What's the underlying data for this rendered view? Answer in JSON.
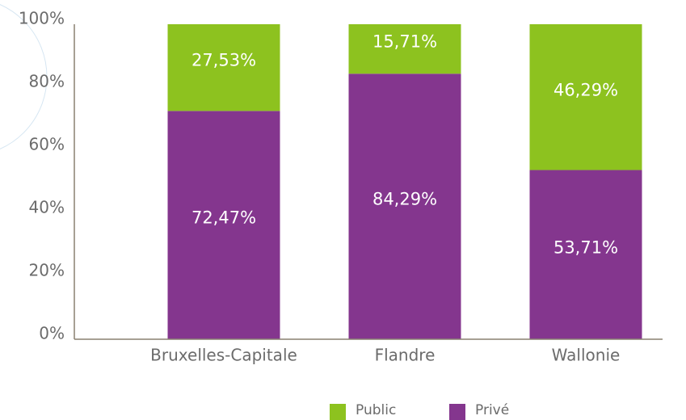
{
  "chart_data": {
    "type": "stacked_bar",
    "categories": [
      "Bruxelles-Capitale",
      "Flandre",
      "Wallonie"
    ],
    "series": [
      {
        "name": "Public",
        "color": "#8dc21f",
        "values": [
          27.53,
          15.71,
          46.29
        ],
        "value_labels": [
          "27,53%",
          "15,71%",
          "46,29%"
        ]
      },
      {
        "name": "Privé",
        "color": "#84368e",
        "values": [
          72.47,
          84.29,
          53.71
        ],
        "value_labels": [
          "72,47%",
          "84,29%",
          "53,71%"
        ]
      }
    ],
    "ylim": [
      0,
      100
    ],
    "yticks": [
      {
        "value": 0,
        "label": "0%"
      },
      {
        "value": 20,
        "label": "20%"
      },
      {
        "value": 40,
        "label": "40%"
      },
      {
        "value": 60,
        "label": "60%"
      },
      {
        "value": 80,
        "label": "80%"
      },
      {
        "value": 100,
        "label": "100%"
      }
    ],
    "legend": "bottom"
  }
}
